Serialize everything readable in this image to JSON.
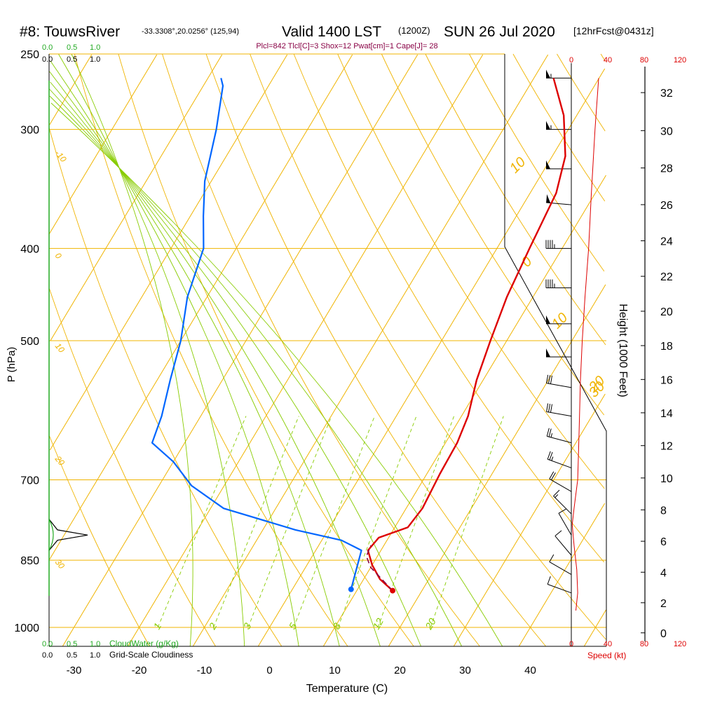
{
  "header": {
    "site": "#8: TouwsRiver",
    "coords": "-33.3308°,20.0256° (125,94)",
    "valid": "Valid 1400 LST",
    "utc": "(1200Z)",
    "date": "SUN 26 Jul 2020",
    "forecast": "[12hrFcst@0431z]",
    "indices": "Plcl=842 Tlcl[C]=3 Shox=12 Pwat[cm]=1 Cape[J]= 28"
  },
  "colors": {
    "temperature": "#dd0000",
    "dewpoint": "#0066ff",
    "parcel": "#880044",
    "isotherm": "#f0b400",
    "dry_adiabat": "#f0b400",
    "moist_adiabat": "#88cc00",
    "mixing_ratio": "#88cc00",
    "cloudwater": "#22aa22",
    "speed": "#dd0000",
    "title": "#000000",
    "indices": "#880044"
  },
  "chart_data": {
    "type": "line",
    "xlabel": "Temperature (C)",
    "ylabel": "P (hPa)",
    "right_axis_label": "Height (1000 Feet)",
    "x_ticks": [
      "-30",
      "-20",
      "-10",
      "0",
      "10",
      "20",
      "30",
      "40"
    ],
    "pressure_ticks": [
      "250",
      "300",
      "400",
      "500",
      "700",
      "850",
      "1000"
    ],
    "height_ticks": [
      "0",
      "2",
      "4",
      "6",
      "8",
      "10",
      "12",
      "14",
      "16",
      "18",
      "20",
      "22",
      "24",
      "26",
      "28",
      "30",
      "32"
    ],
    "dry_adiabat_labels": [
      "-10",
      "0",
      "10",
      "20",
      "30"
    ],
    "upper_dry_labels": [
      "10",
      "0",
      "10",
      "20",
      "30"
    ],
    "mixing_ratio_labels": [
      "1",
      "2",
      "3",
      "5",
      "8",
      "12",
      "20"
    ],
    "cloud_scale": {
      "cloudwater_ticks": [
        "0.0",
        "0.5",
        "1.0"
      ],
      "cloudiness_ticks": [
        "0.0",
        "0.5",
        "1.0"
      ],
      "cloudwater_label": "CloudWater (g/Kg)",
      "cloudiness_label": "Grid-Scale Cloudiness"
    },
    "speed_scale": {
      "ticks": [
        "0",
        "40",
        "80",
        "120"
      ],
      "label": "Speed (kt)"
    },
    "series": [
      {
        "role": "temperature",
        "points": [
          [
            15.5,
            915
          ],
          [
            12.5,
            890
          ],
          [
            10,
            860
          ],
          [
            8,
            830
          ],
          [
            8.5,
            805
          ],
          [
            12,
            785
          ],
          [
            12.5,
            750
          ],
          [
            12,
            690
          ],
          [
            11.8,
            640
          ],
          [
            11,
            600
          ],
          [
            9,
            550
          ],
          [
            7.5,
            500
          ],
          [
            6,
            450
          ],
          [
            5,
            400
          ],
          [
            4,
            350
          ],
          [
            2,
            320
          ],
          [
            -2,
            290
          ],
          [
            -7,
            265
          ]
        ]
      },
      {
        "role": "dewpoint",
        "points": [
          [
            9,
            912
          ],
          [
            8,
            870
          ],
          [
            7,
            830
          ],
          [
            3,
            810
          ],
          [
            -5,
            790
          ],
          [
            -18,
            750
          ],
          [
            -25,
            710
          ],
          [
            -30,
            670
          ],
          [
            -35,
            640
          ],
          [
            -36,
            600
          ],
          [
            -38,
            550
          ],
          [
            -40,
            500
          ],
          [
            -43,
            450
          ],
          [
            -45,
            400
          ],
          [
            -48,
            370
          ],
          [
            -51,
            340
          ],
          [
            -54,
            300
          ],
          [
            -57,
            270
          ],
          [
            -58,
            265
          ]
        ]
      },
      {
        "role": "parcel",
        "points": [
          [
            15.5,
            915
          ],
          [
            10,
            865
          ],
          [
            8.3,
            842
          ],
          [
            8,
            820
          ]
        ]
      }
    ],
    "surface": {
      "temperature": {
        "x": 15.5,
        "p": 915
      },
      "dewpoint": {
        "x": 9,
        "p": 912
      }
    },
    "wind_speed_profile": [
      [
        30,
        265
      ],
      [
        26,
        300
      ],
      [
        22,
        350
      ],
      [
        19,
        400
      ],
      [
        15,
        450
      ],
      [
        12,
        500
      ],
      [
        10,
        550
      ],
      [
        9,
        600
      ],
      [
        8,
        650
      ],
      [
        7,
        700
      ],
      [
        3,
        750
      ],
      [
        1,
        780
      ],
      [
        3,
        820
      ],
      [
        6,
        870
      ],
      [
        7,
        920
      ],
      [
        5,
        960
      ]
    ],
    "wind_barbs": [
      {
        "p": 265,
        "dir": 270,
        "spd": 55
      },
      {
        "p": 300,
        "dir": 270,
        "spd": 55
      },
      {
        "p": 330,
        "dir": 270,
        "spd": 50
      },
      {
        "p": 360,
        "dir": 275,
        "spd": 50
      },
      {
        "p": 400,
        "dir": 270,
        "spd": 45
      },
      {
        "p": 440,
        "dir": 270,
        "spd": 45
      },
      {
        "p": 480,
        "dir": 270,
        "spd": 50
      },
      {
        "p": 520,
        "dir": 270,
        "spd": 50
      },
      {
        "p": 560,
        "dir": 280,
        "spd": 30
      },
      {
        "p": 600,
        "dir": 280,
        "spd": 30
      },
      {
        "p": 640,
        "dir": 285,
        "spd": 25
      },
      {
        "p": 680,
        "dir": 290,
        "spd": 25
      },
      {
        "p": 720,
        "dir": 300,
        "spd": 20
      },
      {
        "p": 760,
        "dir": 315,
        "spd": 15
      },
      {
        "p": 800,
        "dir": 330,
        "spd": 10
      },
      {
        "p": 840,
        "dir": 320,
        "spd": 10
      },
      {
        "p": 880,
        "dir": 300,
        "spd": 10
      },
      {
        "p": 920,
        "dir": 290,
        "spd": 10
      }
    ],
    "cloud_profile": [
      [
        0,
        770
      ],
      [
        0.12,
        790
      ],
      [
        0.55,
        800
      ],
      [
        0.12,
        810
      ],
      [
        0,
        830
      ]
    ]
  }
}
